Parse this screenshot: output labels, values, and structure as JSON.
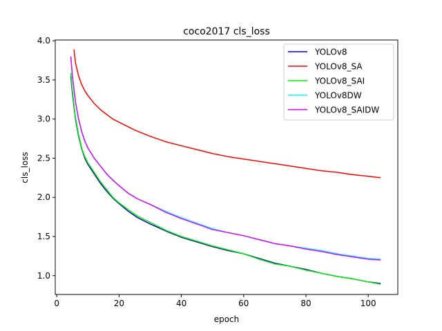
{
  "chart_data": {
    "type": "line",
    "title": "coco2017 cls_loss",
    "xlabel": "epoch",
    "ylabel": "cls_loss",
    "xlim": [
      -0.5,
      109.5
    ],
    "ylim": [
      0.76,
      4.01
    ],
    "xticks": [
      0,
      20,
      40,
      60,
      80,
      100
    ],
    "yticks": [
      1.0,
      1.5,
      2.0,
      2.5,
      3.0,
      3.5,
      4.0
    ],
    "xtick_labels": [
      "0",
      "20",
      "40",
      "60",
      "80",
      "100"
    ],
    "ytick_labels": [
      "1.0",
      "1.5",
      "2.0",
      "2.5",
      "3.0",
      "3.5",
      "4.0"
    ],
    "grid": false,
    "legend_position": "top-right",
    "series": [
      {
        "name": "YOLOv8",
        "color": "#0000cc",
        "x": [
          4.5,
          5,
          6,
          7,
          8,
          9,
          10,
          12,
          14,
          16,
          18,
          20,
          23,
          26,
          30,
          35,
          40,
          45,
          50,
          55,
          60,
          65,
          70,
          75,
          80,
          85,
          90,
          95,
          100,
          104
        ],
        "y": [
          3.55,
          3.33,
          3.0,
          2.78,
          2.62,
          2.5,
          2.42,
          2.3,
          2.18,
          2.08,
          1.99,
          1.92,
          1.82,
          1.74,
          1.66,
          1.57,
          1.49,
          1.43,
          1.37,
          1.32,
          1.28,
          1.22,
          1.16,
          1.12,
          1.08,
          1.03,
          0.99,
          0.96,
          0.92,
          0.9
        ]
      },
      {
        "name": "YOLOv8_SA",
        "color": "#ff0000",
        "x": [
          5.5,
          6,
          7,
          8,
          9,
          10,
          12,
          14,
          16,
          18,
          20,
          25,
          30,
          35,
          40,
          45,
          50,
          55,
          60,
          65,
          70,
          75,
          80,
          85,
          90,
          95,
          100,
          104
        ],
        "y": [
          3.89,
          3.72,
          3.55,
          3.44,
          3.36,
          3.3,
          3.2,
          3.12,
          3.06,
          3.0,
          2.96,
          2.86,
          2.78,
          2.71,
          2.66,
          2.61,
          2.56,
          2.52,
          2.49,
          2.46,
          2.43,
          2.4,
          2.37,
          2.34,
          2.32,
          2.29,
          2.27,
          2.25
        ]
      },
      {
        "name": "YOLOv8_SAI",
        "color": "#00ee00",
        "x": [
          4.5,
          5,
          6,
          7,
          8,
          9,
          10,
          12,
          14,
          16,
          18,
          20,
          23,
          26,
          30,
          35,
          40,
          45,
          50,
          55,
          60,
          65,
          70,
          75,
          80,
          85,
          90,
          95,
          100,
          104
        ],
        "y": [
          3.59,
          3.36,
          3.02,
          2.8,
          2.63,
          2.52,
          2.44,
          2.32,
          2.2,
          2.1,
          2.0,
          1.93,
          1.84,
          1.76,
          1.68,
          1.58,
          1.5,
          1.44,
          1.38,
          1.33,
          1.28,
          1.21,
          1.15,
          1.12,
          1.07,
          1.03,
          0.99,
          0.96,
          0.92,
          0.89
        ]
      },
      {
        "name": "YOLOv8DW",
        "color": "#00ffff",
        "x": [
          4.5,
          5,
          6,
          7,
          8,
          9,
          10,
          12,
          14,
          16,
          18,
          20,
          23,
          26,
          30,
          35,
          40,
          45,
          50,
          55,
          60,
          65,
          70,
          75,
          80,
          85,
          90,
          95,
          100,
          104
        ],
        "y": [
          3.8,
          3.55,
          3.22,
          3.0,
          2.84,
          2.72,
          2.63,
          2.5,
          2.4,
          2.3,
          2.22,
          2.15,
          2.05,
          1.98,
          1.91,
          1.82,
          1.74,
          1.67,
          1.6,
          1.55,
          1.51,
          1.46,
          1.41,
          1.38,
          1.35,
          1.32,
          1.28,
          1.25,
          1.22,
          1.21
        ]
      },
      {
        "name": "YOLOv8_SAIDW",
        "color": "#dd00ff",
        "x": [
          4.5,
          5,
          6,
          7,
          8,
          9,
          10,
          12,
          14,
          16,
          18,
          20,
          23,
          26,
          30,
          35,
          40,
          45,
          50,
          55,
          60,
          65,
          70,
          75,
          80,
          85,
          90,
          95,
          100,
          104
        ],
        "y": [
          3.8,
          3.55,
          3.22,
          3.0,
          2.84,
          2.72,
          2.63,
          2.5,
          2.4,
          2.3,
          2.22,
          2.15,
          2.05,
          1.98,
          1.91,
          1.81,
          1.73,
          1.66,
          1.59,
          1.55,
          1.51,
          1.46,
          1.41,
          1.38,
          1.34,
          1.31,
          1.27,
          1.24,
          1.21,
          1.2
        ]
      }
    ]
  }
}
